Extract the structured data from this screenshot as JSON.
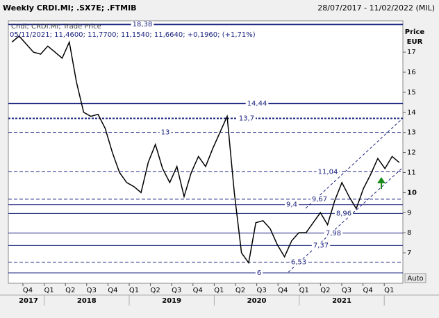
{
  "header": {
    "title": "Weekly CRDI.MI; .SX7E; .FTMIB",
    "range": "28/07/2017 - 11/02/2022 (MIL)",
    "legend": "Cndl; CRDI.MI; Trade Price",
    "quote": "05/11/2021; 11,4600; 11,7700; 11,1540; 11,6640; +0,1960; (+1,71%)",
    "button": "Auto"
  },
  "chart_data": {
    "type": "line",
    "y_title": "Price",
    "y_unit": "EUR",
    "color": "#000000",
    "values": [
      17.5,
      17.8,
      17.4,
      17.0,
      16.9,
      17.3,
      17.0,
      16.7,
      17.5,
      15.5,
      14.0,
      13.8,
      13.9,
      13.2,
      12.0,
      11.0,
      10.5,
      10.3,
      10.0,
      11.5,
      12.4,
      11.2,
      10.5,
      11.3,
      9.8,
      11.0,
      11.8,
      11.3,
      12.2,
      13.0,
      13.8,
      10.0,
      7.0,
      6.5,
      8.5,
      8.6,
      8.2,
      7.4,
      6.8,
      7.6,
      8.0,
      8.0,
      8.5,
      9.0,
      8.4,
      9.6,
      10.5,
      9.8,
      9.2,
      10.2,
      10.9,
      11.7,
      11.2,
      11.8,
      11.5
    ],
    "ylim": [
      5.48,
      18.56
    ],
    "yticks": [
      7,
      8,
      9,
      10,
      11,
      12,
      13,
      14,
      15,
      16,
      17
    ],
    "levels": [
      {
        "value": 18.38,
        "label": "18,38",
        "style": "solid"
      },
      {
        "value": 14.44,
        "label": "14,44",
        "style": "solid"
      },
      {
        "value": 13.7,
        "label": "13,7",
        "style": "dotted"
      },
      {
        "value": 13,
        "label": "13",
        "style": "dashed"
      },
      {
        "value": 11.04,
        "label": "11,04",
        "style": "dashed"
      },
      {
        "value": 9.67,
        "label": "9,67",
        "style": "dashed"
      },
      {
        "value": 9.4,
        "label": "9,4",
        "style": "thin"
      },
      {
        "value": 8.96,
        "label": "8,96",
        "style": "thin"
      },
      {
        "value": 7.98,
        "label": "7,98",
        "style": "thin"
      },
      {
        "value": 7.37,
        "label": "7,37",
        "style": "thin"
      },
      {
        "value": 6.53,
        "label": "6,53",
        "style": "dashed"
      },
      {
        "value": 6,
        "label": "6",
        "style": "thin"
      }
    ],
    "quarters": [
      "Q4",
      "Q1",
      "Q2",
      "Q3",
      "Q4",
      "Q1",
      "Q2",
      "Q3",
      "Q4",
      "Q1",
      "Q2",
      "Q3",
      "Q4",
      "Q1",
      "Q2",
      "Q3",
      "Q4",
      "Q1"
    ],
    "years": [
      "2017",
      "2018",
      "2019",
      "2020",
      "2021"
    ]
  }
}
